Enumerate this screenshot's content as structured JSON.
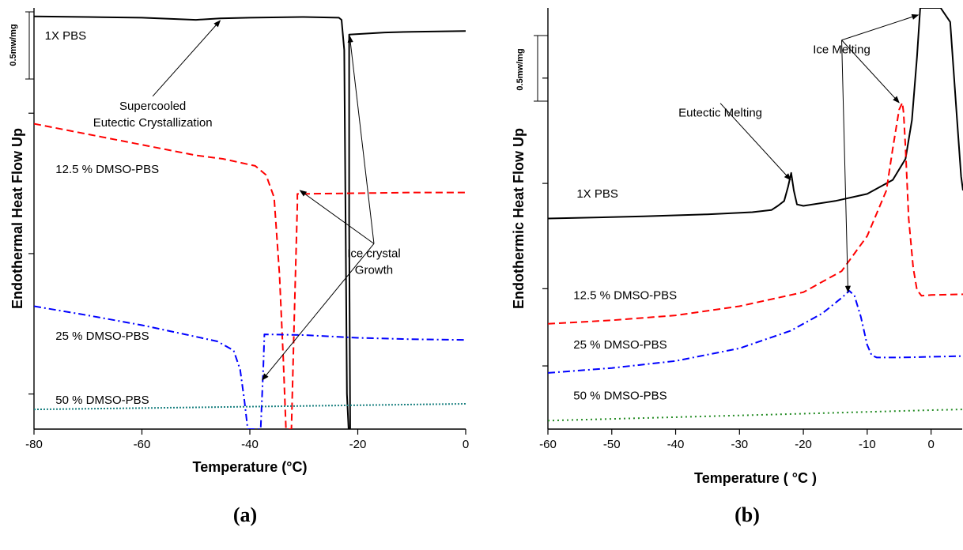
{
  "charts": [
    {
      "type": "line",
      "panel_label": "(a)",
      "xlabel": "Temperature (°C)",
      "ylabel": "Endothermal Heat Flow Up",
      "scale_bar_label": "0.5mw/mg",
      "xlim": [
        -80,
        0
      ],
      "xticks": [
        -80,
        -60,
        -40,
        -20,
        0
      ],
      "ylim": [
        0,
        6
      ],
      "yticks": [
        0.5,
        2.5,
        4.5
      ],
      "series_labels": [
        {
          "text": "1X PBS",
          "x": -78.0,
          "y": 5.55
        },
        {
          "text": "12.5 % DMSO-PBS",
          "x": -76.0,
          "y": 3.65
        },
        {
          "text": "25 % DMSO-PBS",
          "x": -76.0,
          "y": 1.27
        },
        {
          "text": "50 % DMSO-PBS",
          "x": -76.0,
          "y": 0.36
        }
      ],
      "annotations": [
        {
          "text": [
            "Supercooled",
            "Eutectic Crystallization"
          ],
          "x": -58.0,
          "y": 4.55,
          "arrow_to": [
            -45.5,
            5.82
          ]
        },
        {
          "text": [
            "Ice crystal",
            "Growth"
          ],
          "x": -17.0,
          "y": 2.45,
          "arrows_to": [
            [
              -21.5,
              5.6
            ],
            [
              -30.7,
              3.4
            ],
            [
              -37.7,
              0.7
            ]
          ]
        }
      ],
      "series": [
        {
          "name": "1X PBS",
          "color": "#000000",
          "dash": "",
          "points": [
            [
              -80,
              5.88
            ],
            [
              -70,
              5.87
            ],
            [
              -60,
              5.86
            ],
            [
              -50,
              5.83
            ],
            [
              -45.5,
              5.85
            ],
            [
              -40,
              5.86
            ],
            [
              -30,
              5.87
            ],
            [
              -23.5,
              5.86
            ],
            [
              -23.0,
              5.83
            ],
            [
              -22.5,
              5.4
            ],
            [
              -22.0,
              0.5
            ],
            [
              -21.7,
              0.0
            ],
            [
              -21.4,
              0.0
            ],
            [
              -21.6,
              3.0
            ],
            [
              -21.6,
              5.62
            ],
            [
              -15,
              5.65
            ],
            [
              -10,
              5.66
            ],
            [
              0,
              5.67
            ]
          ]
        },
        {
          "name": "12.5 % DMSO-PBS",
          "color": "#ff0000",
          "dash": "9,5",
          "points": [
            [
              -80,
              4.35
            ],
            [
              -70,
              4.2
            ],
            [
              -60,
              4.05
            ],
            [
              -50,
              3.9
            ],
            [
              -45,
              3.85
            ],
            [
              -39,
              3.75
            ],
            [
              -37,
              3.62
            ],
            [
              -35.5,
              3.3
            ],
            [
              -34.5,
              2.2
            ],
            [
              -33.8,
              1.0
            ],
            [
              -33.3,
              0.0
            ],
            [
              -32.3,
              0.0
            ],
            [
              -31.8,
              1.5
            ],
            [
              -31.2,
              3.2
            ],
            [
              -31.2,
              3.35
            ],
            [
              -20,
              3.36
            ],
            [
              -10,
              3.37
            ],
            [
              0,
              3.37
            ]
          ]
        },
        {
          "name": "25 % DMSO-PBS",
          "color": "#0000ff",
          "dash": "9,4,2,4",
          "points": [
            [
              -80,
              1.75
            ],
            [
              -70,
              1.62
            ],
            [
              -60,
              1.48
            ],
            [
              -52,
              1.35
            ],
            [
              -46,
              1.25
            ],
            [
              -43,
              1.12
            ],
            [
              -41.8,
              0.85
            ],
            [
              -41.0,
              0.4
            ],
            [
              -40.4,
              0.0
            ],
            [
              -38.0,
              0.0
            ],
            [
              -37.5,
              0.9
            ],
            [
              -37.3,
              1.35
            ],
            [
              -30,
              1.34
            ],
            [
              -20,
              1.3
            ],
            [
              -10,
              1.28
            ],
            [
              0,
              1.27
            ]
          ]
        },
        {
          "name": "50 % DMSO-PBS",
          "color": "#1a8080",
          "dash": "2,2",
          "points": [
            [
              -80,
              0.28
            ],
            [
              -60,
              0.3
            ],
            [
              -40,
              0.32
            ],
            [
              -20,
              0.34
            ],
            [
              -10,
              0.35
            ],
            [
              0,
              0.36
            ]
          ]
        }
      ]
    },
    {
      "type": "line",
      "panel_label": "(b)",
      "xlabel": "Temperature ( °C )",
      "ylabel": "Endothermic Heat Flow Up",
      "scale_bar_label": "0.5mw/mg",
      "xlim": [
        -60,
        5
      ],
      "xticks": [
        -60,
        -50,
        -40,
        -30,
        -20,
        -10,
        0
      ],
      "ylim": [
        0,
        6
      ],
      "yticks": [
        0.9,
        2.0,
        3.5,
        5.0
      ],
      "series_labels": [
        {
          "text": "1X PBS",
          "x": -55.5,
          "y": 3.3
        },
        {
          "text": "12.5 % DMSO-PBS",
          "x": -56.0,
          "y": 1.85
        },
        {
          "text": "25 % DMSO-PBS",
          "x": -56.0,
          "y": 1.15
        },
        {
          "text": "50 % DMSO-PBS",
          "x": -56.0,
          "y": 0.42
        }
      ],
      "annotations": [
        {
          "text": [
            "Eutectic Melting"
          ],
          "x": -33.0,
          "y": 4.45,
          "arrow_to": [
            -22.0,
            3.55
          ]
        },
        {
          "text": [
            "Ice Melting"
          ],
          "x": -14.0,
          "y": 5.35,
          "arrows_to": [
            [
              -2.0,
              5.9
            ],
            [
              -5.0,
              4.65
            ],
            [
              -13.0,
              1.95
            ]
          ]
        }
      ],
      "series": [
        {
          "name": "1X PBS",
          "color": "#000000",
          "dash": "",
          "points": [
            [
              -60,
              3.0
            ],
            [
              -45,
              3.03
            ],
            [
              -35,
              3.06
            ],
            [
              -28,
              3.09
            ],
            [
              -25,
              3.12
            ],
            [
              -24,
              3.18
            ],
            [
              -23,
              3.25
            ],
            [
              -22.4,
              3.45
            ],
            [
              -21.9,
              3.65
            ],
            [
              -21.5,
              3.4
            ],
            [
              -21.0,
              3.2
            ],
            [
              -20,
              3.18
            ],
            [
              -15,
              3.25
            ],
            [
              -10,
              3.35
            ],
            [
              -6,
              3.55
            ],
            [
              -4,
              3.85
            ],
            [
              -3,
              4.4
            ],
            [
              -2.2,
              5.3
            ],
            [
              -1.7,
              6.0
            ],
            [
              1.5,
              6.0
            ],
            [
              3.0,
              5.8
            ],
            [
              4.0,
              4.5
            ],
            [
              4.7,
              3.6
            ],
            [
              5,
              3.4
            ]
          ]
        },
        {
          "name": "12.5 % DMSO-PBS",
          "color": "#ff0000",
          "dash": "9,5",
          "points": [
            [
              -60,
              1.5
            ],
            [
              -50,
              1.55
            ],
            [
              -40,
              1.62
            ],
            [
              -30,
              1.75
            ],
            [
              -20,
              1.95
            ],
            [
              -14,
              2.25
            ],
            [
              -10,
              2.75
            ],
            [
              -7,
              3.4
            ],
            [
              -6,
              4.0
            ],
            [
              -5,
              4.55
            ],
            [
              -4.5,
              4.65
            ],
            [
              -4.3,
              4.5
            ],
            [
              -4.0,
              4.0
            ],
            [
              -3.5,
              3.0
            ],
            [
              -2.8,
              2.3
            ],
            [
              -2.2,
              1.98
            ],
            [
              -1.5,
              1.9
            ],
            [
              0,
              1.91
            ],
            [
              5,
              1.92
            ]
          ]
        },
        {
          "name": "25 % DMSO-PBS",
          "color": "#0000ff",
          "dash": "9,4,2,4",
          "points": [
            [
              -60,
              0.8
            ],
            [
              -50,
              0.87
            ],
            [
              -40,
              0.97
            ],
            [
              -30,
              1.15
            ],
            [
              -22,
              1.4
            ],
            [
              -17,
              1.65
            ],
            [
              -14,
              1.87
            ],
            [
              -12.8,
              1.97
            ],
            [
              -12.0,
              1.9
            ],
            [
              -11,
              1.6
            ],
            [
              -10.0,
              1.2
            ],
            [
              -9.3,
              1.05
            ],
            [
              -8.5,
              1.02
            ],
            [
              -5,
              1.02
            ],
            [
              0,
              1.03
            ],
            [
              5,
              1.04
            ]
          ]
        },
        {
          "name": "50 % DMSO-PBS",
          "color": "#228b22",
          "dash": "2,4",
          "points": [
            [
              -60,
              0.12
            ],
            [
              -40,
              0.17
            ],
            [
              -20,
              0.22
            ],
            [
              0,
              0.27
            ],
            [
              5,
              0.28
            ]
          ]
        }
      ]
    }
  ]
}
